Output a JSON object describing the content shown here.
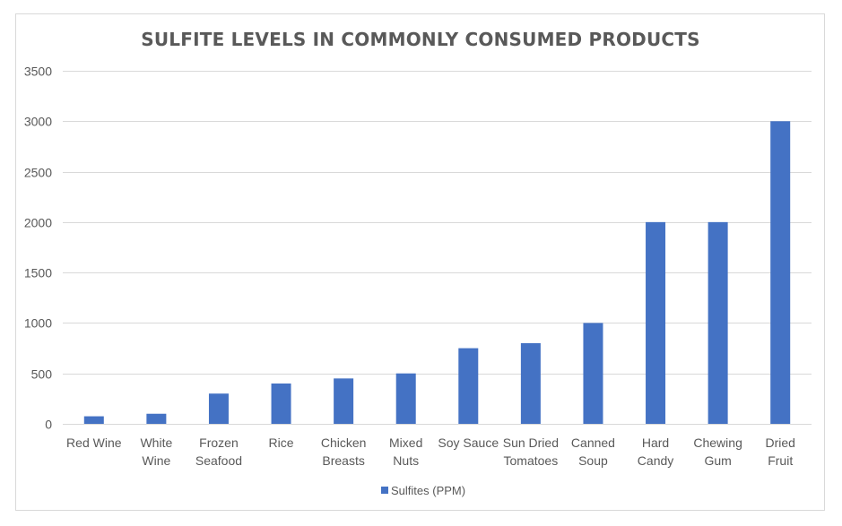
{
  "chart_data": {
    "type": "bar",
    "title": "SULFITE LEVELS IN COMMONLY CONSUMED PRODUCTS",
    "xlabel": "",
    "ylabel": "",
    "categories": [
      [
        "Red Wine"
      ],
      [
        "White",
        "Wine"
      ],
      [
        "Frozen",
        "Seafood"
      ],
      [
        "Rice"
      ],
      [
        "Chicken",
        "Breasts"
      ],
      [
        "Mixed",
        "Nuts"
      ],
      [
        "Soy Sauce"
      ],
      [
        "Sun Dried",
        "Tomatoes"
      ],
      [
        "Canned",
        "Soup"
      ],
      [
        "Hard",
        "Candy"
      ],
      [
        "Chewing",
        "Gum"
      ],
      [
        "Dried",
        "Fruit"
      ]
    ],
    "series": [
      {
        "name": "Sulfites (PPM)",
        "color": "#4472c4",
        "values": [
          75,
          100,
          300,
          400,
          450,
          500,
          750,
          800,
          1000,
          2000,
          2000,
          3000
        ]
      }
    ],
    "ylim": [
      0,
      3500
    ],
    "yticks": [
      "0",
      "500",
      "1000",
      "1500",
      "2000",
      "2500",
      "3000",
      "3500"
    ],
    "grid": true,
    "legend_position": "bottom",
    "colors": {
      "bar": "#4472c4",
      "gridline": "#d9d9d9",
      "text": "#595959"
    }
  }
}
